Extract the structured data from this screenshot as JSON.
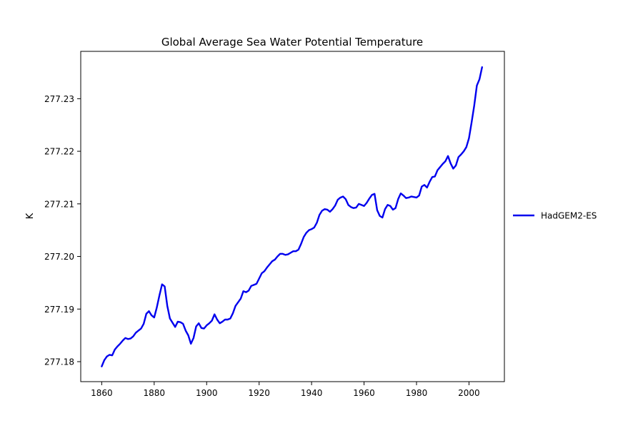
{
  "chart_data": {
    "type": "line",
    "title": "Global Average Sea Water Potential Temperature",
    "xlabel": "",
    "ylabel": "K",
    "xlim": [
      1852,
      2013.5
    ],
    "ylim": [
      277.1762,
      277.239
    ],
    "xticks": [
      1860,
      1880,
      1900,
      1920,
      1940,
      1960,
      1980,
      2000
    ],
    "yticks": [
      277.18,
      277.19,
      277.2,
      277.21,
      277.22,
      277.23
    ],
    "ytick_labels": [
      "277.18",
      "277.19",
      "277.20",
      "277.21",
      "277.22",
      "277.23"
    ],
    "grid": false,
    "legend_position": "outside-right",
    "series": [
      {
        "name": "HadGEM2-ES",
        "color": "#0000ee",
        "x": [
          1860,
          1861,
          1862,
          1863,
          1864,
          1865,
          1866,
          1867,
          1868,
          1869,
          1870,
          1871,
          1872,
          1873,
          1874,
          1875,
          1876,
          1877,
          1878,
          1879,
          1880,
          1881,
          1882,
          1883,
          1884,
          1885,
          1886,
          1887,
          1888,
          1889,
          1890,
          1891,
          1892,
          1893,
          1894,
          1895,
          1896,
          1897,
          1898,
          1899,
          1900,
          1901,
          1902,
          1903,
          1904,
          1905,
          1906,
          1907,
          1908,
          1909,
          1910,
          1911,
          1912,
          1913,
          1914,
          1915,
          1916,
          1917,
          1918,
          1919,
          1920,
          1921,
          1922,
          1923,
          1924,
          1925,
          1926,
          1927,
          1928,
          1929,
          1930,
          1931,
          1932,
          1933,
          1934,
          1935,
          1936,
          1937,
          1938,
          1939,
          1940,
          1941,
          1942,
          1943,
          1944,
          1945,
          1946,
          1947,
          1948,
          1949,
          1950,
          1951,
          1952,
          1953,
          1954,
          1955,
          1956,
          1957,
          1958,
          1959,
          1960,
          1961,
          1962,
          1963,
          1964,
          1965,
          1966,
          1967,
          1968,
          1969,
          1970,
          1971,
          1972,
          1973,
          1974,
          1975,
          1976,
          1977,
          1978,
          1979,
          1980,
          1981,
          1982,
          1983,
          1984,
          1985,
          1986,
          1987,
          1988,
          1989,
          1990,
          1991,
          1992,
          1993,
          1994,
          1995,
          1996,
          1997,
          1998,
          1999,
          2000,
          2001,
          2002,
          2003,
          2004,
          2005
        ],
        "values": [
          277.1791,
          277.1803,
          277.181,
          277.1813,
          277.1812,
          277.1823,
          277.1829,
          277.1834,
          277.184,
          277.1845,
          277.1843,
          277.1844,
          277.1848,
          277.1855,
          277.1859,
          277.1863,
          277.1872,
          277.1891,
          277.1896,
          277.1888,
          277.1884,
          277.1903,
          277.1926,
          277.1947,
          277.1943,
          277.1906,
          277.1882,
          277.1874,
          277.1866,
          277.1876,
          277.1875,
          277.1872,
          277.1859,
          277.185,
          277.1834,
          277.1845,
          277.1867,
          277.1873,
          277.1864,
          277.1863,
          277.1869,
          277.1873,
          277.1878,
          277.189,
          277.188,
          277.1873,
          277.1876,
          277.188,
          277.188,
          277.1882,
          277.1892,
          277.1906,
          277.1913,
          277.192,
          277.1934,
          277.1932,
          277.1935,
          277.1944,
          277.1946,
          277.1948,
          277.1958,
          277.1968,
          277.1972,
          277.1979,
          277.1985,
          277.1991,
          277.1994,
          277.2,
          277.2005,
          277.2005,
          277.2003,
          277.2004,
          277.2007,
          277.201,
          277.201,
          277.2013,
          277.2024,
          277.2037,
          277.2045,
          277.205,
          277.2052,
          277.2055,
          277.2064,
          277.2079,
          277.2087,
          277.209,
          277.2089,
          277.2085,
          277.209,
          277.2097,
          277.2108,
          277.2112,
          277.2114,
          277.2109,
          277.2098,
          277.2094,
          277.2092,
          277.2093,
          277.21,
          277.2098,
          277.2096,
          277.2102,
          277.211,
          277.2117,
          277.2119,
          277.2088,
          277.2077,
          277.2074,
          277.209,
          277.2098,
          277.2096,
          277.2089,
          277.2092,
          277.2109,
          277.212,
          277.2116,
          277.2111,
          277.2112,
          277.2114,
          277.2113,
          277.2112,
          277.2116,
          277.2133,
          277.2136,
          277.2131,
          277.2142,
          277.2151,
          277.2152,
          277.2164,
          277.217,
          277.2176,
          277.2181,
          277.2191,
          277.2177,
          277.2167,
          277.2173,
          277.2189,
          277.2194,
          277.22,
          277.2208,
          277.2225,
          277.2255,
          277.2287,
          277.2325,
          277.2337,
          277.236
        ]
      }
    ]
  }
}
